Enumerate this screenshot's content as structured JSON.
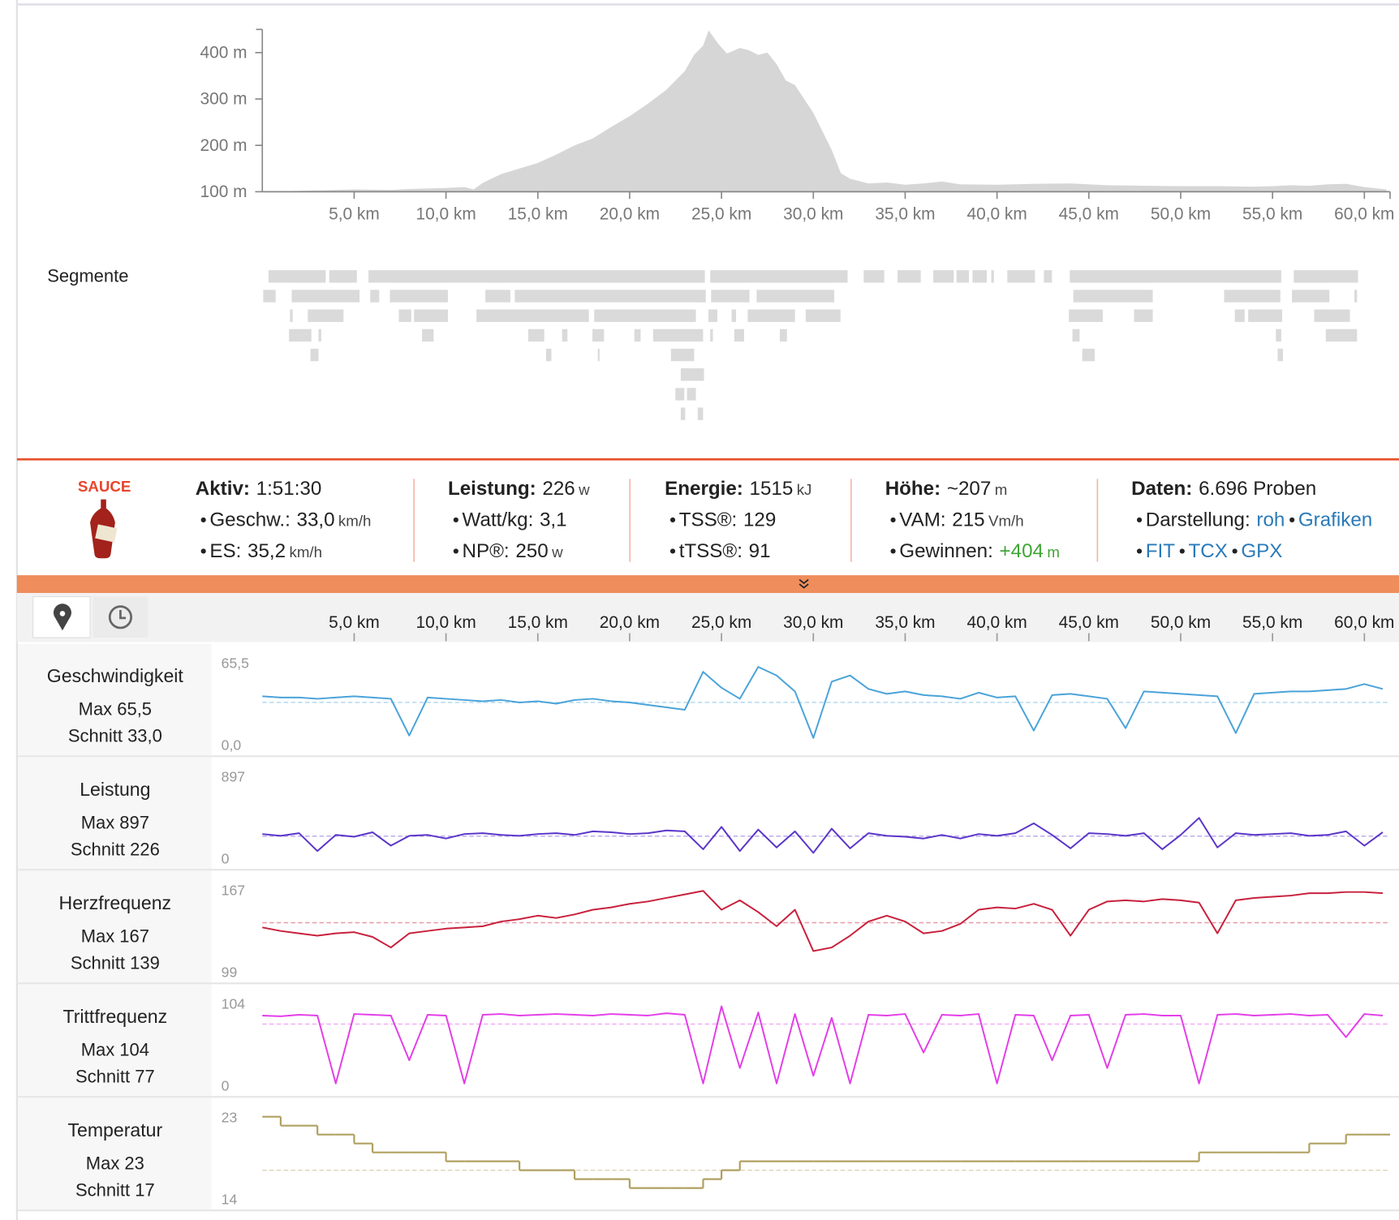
{
  "elevation": {
    "type": "area",
    "color": "#d6d6d6",
    "xlim": [
      0,
      61.4
    ],
    "ylim": [
      100,
      450
    ],
    "xticks": [
      {
        "value": 5,
        "label": "5,0 km"
      },
      {
        "value": 10,
        "label": "10,0 km"
      },
      {
        "value": 15,
        "label": "15,0 km"
      },
      {
        "value": 20,
        "label": "20,0 km"
      },
      {
        "value": 25,
        "label": "25,0 km"
      },
      {
        "value": 30,
        "label": "30,0 km"
      },
      {
        "value": 35,
        "label": "35,0 km"
      },
      {
        "value": 40,
        "label": "40,0 km"
      },
      {
        "value": 45,
        "label": "45,0 km"
      },
      {
        "value": 50,
        "label": "50,0 km"
      },
      {
        "value": 55,
        "label": "55,0 km"
      },
      {
        "value": 60,
        "label": "60,0 km"
      }
    ],
    "yticks": [
      {
        "value": 100,
        "label": "100 m"
      },
      {
        "value": 200,
        "label": "200 m"
      },
      {
        "value": 300,
        "label": "300 m"
      },
      {
        "value": 400,
        "label": "400 m"
      }
    ],
    "x": [
      0,
      2,
      4,
      5,
      7,
      8,
      10,
      11,
      11.5,
      12,
      13,
      14,
      15,
      16,
      17,
      18,
      19,
      20,
      21,
      22,
      23,
      23.5,
      24,
      24.3,
      24.8,
      25.3,
      26,
      26.5,
      27,
      27.5,
      28,
      28.5,
      29,
      30,
      31,
      31.5,
      32,
      33,
      34,
      35,
      36,
      37,
      38,
      40,
      42,
      44,
      46,
      48,
      50,
      52,
      54,
      55,
      56,
      57,
      58,
      59,
      60,
      61.2
    ],
    "values": [
      100,
      102,
      104,
      105,
      104,
      106,
      108,
      110,
      105,
      119,
      138,
      150,
      162,
      180,
      200,
      215,
      240,
      263,
      290,
      320,
      360,
      395,
      415,
      448,
      420,
      398,
      410,
      405,
      395,
      400,
      375,
      340,
      330,
      270,
      190,
      140,
      128,
      118,
      120,
      115,
      118,
      122,
      116,
      115,
      117,
      118,
      114,
      113,
      112,
      112,
      111,
      112,
      114,
      113,
      116,
      117,
      110,
      105
    ]
  },
  "segments_label": "Segmente",
  "logo": "SAUCE",
  "stats": [
    {
      "label": "Aktiv:",
      "value": "1:51:30",
      "items": [
        {
          "label": "Geschw.:",
          "value": "33,0",
          "unit": "km/h"
        },
        {
          "label": "ES:",
          "value": "35,2",
          "unit": "km/h"
        }
      ]
    },
    {
      "label": "Leistung:",
      "value": "226",
      "unit": "w",
      "items": [
        {
          "label": "Watt/kg:",
          "value": "3,1"
        },
        {
          "label": "NP®:",
          "value": "250",
          "unit": "w"
        }
      ]
    },
    {
      "label": "Energie:",
      "value": "1515",
      "unit": "kJ",
      "items": [
        {
          "label": "TSS®:",
          "value": "129"
        },
        {
          "label": "tTSS®:",
          "value": "91"
        }
      ]
    },
    {
      "label": "Höhe:",
      "value": "~207",
      "unit": "m",
      "items": [
        {
          "label": "VAM:",
          "value": "215",
          "unit": "Vm/h"
        },
        {
          "label": "Gewinnen:",
          "value": "+404",
          "unit": "m",
          "color": "#3fa535"
        }
      ]
    },
    {
      "label": "Daten:",
      "value": "6.696 Proben",
      "items": [
        {
          "label": "Darstellung:",
          "links": [
            "roh",
            "Grafiken"
          ]
        },
        {
          "links": [
            "FIT",
            "TCX",
            "GPX"
          ]
        }
      ]
    }
  ],
  "streams": {
    "type": "line",
    "xlim": [
      0,
      61.4
    ],
    "xticks": [
      {
        "value": 5,
        "label": "5,0 km"
      },
      {
        "value": 10,
        "label": "10,0 km"
      },
      {
        "value": 15,
        "label": "15,0 km"
      },
      {
        "value": 20,
        "label": "20,0 km"
      },
      {
        "value": 25,
        "label": "25,0 km"
      },
      {
        "value": 30,
        "label": "30,0 km"
      },
      {
        "value": 35,
        "label": "35,0 km"
      },
      {
        "value": 40,
        "label": "40,0 km"
      },
      {
        "value": 45,
        "label": "45,0 km"
      },
      {
        "value": 50,
        "label": "50,0 km"
      },
      {
        "value": 55,
        "label": "55,0 km"
      },
      {
        "value": 60,
        "label": "60,0 km"
      }
    ],
    "x": [
      0,
      1,
      2,
      3,
      4,
      5,
      6,
      7,
      8,
      9,
      10,
      11,
      12,
      13,
      14,
      15,
      16,
      17,
      18,
      19,
      20,
      21,
      22,
      23,
      24,
      25,
      26,
      27,
      28,
      29,
      30,
      31,
      32,
      33,
      34,
      35,
      36,
      37,
      38,
      39,
      40,
      41,
      42,
      43,
      44,
      45,
      46,
      47,
      48,
      49,
      50,
      51,
      52,
      53,
      54,
      55,
      56,
      57,
      58,
      59,
      60,
      61
    ],
    "series": [
      {
        "name": "Geschwindigkeit",
        "color": "#4aa3d9",
        "max": "Max 65,5",
        "mean": {
          "value": 33.0,
          "label": "Schnitt 33,0"
        },
        "ylim": [
          0,
          65.5
        ],
        "yticks": [
          {
            "value": 0,
            "label": "0,0"
          },
          {
            "value": 65.5,
            "label": "65,5"
          }
        ],
        "values": [
          38,
          37,
          37,
          36,
          37,
          38,
          37,
          36,
          6,
          37,
          36,
          35,
          34,
          35,
          33,
          34,
          32,
          35,
          36,
          34,
          33,
          31,
          29,
          27,
          58,
          45,
          36,
          62,
          55,
          42,
          4,
          50,
          55,
          44,
          40,
          42,
          39,
          38,
          36,
          41,
          37,
          38,
          10,
          39,
          40,
          38,
          36,
          12,
          42,
          41,
          40,
          39,
          38,
          8,
          40,
          41,
          42,
          42,
          43,
          44,
          48,
          44
        ]
      },
      {
        "name": "Leistung",
        "color": "#5b35c9",
        "max": "Max 897",
        "mean": {
          "value": 226,
          "label": "Schnitt 226"
        },
        "ylim": [
          0,
          897
        ],
        "yticks": [
          0,
          897
        ],
        "values": [
          250,
          230,
          260,
          60,
          240,
          220,
          270,
          120,
          230,
          240,
          200,
          250,
          260,
          240,
          230,
          250,
          260,
          240,
          280,
          270,
          250,
          260,
          290,
          280,
          80,
          330,
          60,
          300,
          100,
          280,
          40,
          310,
          90,
          260,
          230,
          220,
          200,
          240,
          200,
          250,
          230,
          260,
          370,
          240,
          90,
          260,
          250,
          230,
          260,
          80,
          240,
          430,
          100,
          260,
          240,
          250,
          260,
          230,
          240,
          280,
          120,
          270
        ]
      },
      {
        "name": "Herzfrequenz",
        "color": "#c8203c",
        "max": "Max 167",
        "mean": {
          "value": 139,
          "label": "Schnitt 139"
        },
        "ylim": [
          99,
          167
        ],
        "yticks": [
          99,
          167
        ],
        "values": [
          135,
          132,
          130,
          128,
          130,
          131,
          127,
          118,
          130,
          132,
          134,
          135,
          136,
          140,
          142,
          145,
          143,
          146,
          150,
          152,
          155,
          157,
          160,
          163,
          166,
          150,
          158,
          148,
          136,
          150,
          115,
          118,
          128,
          140,
          145,
          140,
          130,
          132,
          138,
          150,
          152,
          151,
          155,
          150,
          128,
          150,
          157,
          158,
          157,
          159,
          158,
          156,
          130,
          158,
          160,
          161,
          162,
          164,
          164,
          165,
          165,
          164
        ]
      },
      {
        "name": "Trittfrequenz",
        "color": "#e33ee8",
        "max": "Max 104",
        "mean": {
          "value": 77,
          "label": "Schnitt 77"
        },
        "ylim": [
          0,
          104
        ],
        "yticks": [
          0,
          104
        ],
        "values": [
          88,
          87,
          89,
          88,
          0,
          90,
          89,
          88,
          30,
          89,
          88,
          0,
          89,
          90,
          88,
          89,
          90,
          89,
          88,
          90,
          89,
          88,
          91,
          89,
          0,
          100,
          20,
          92,
          0,
          90,
          10,
          85,
          0,
          89,
          88,
          90,
          40,
          89,
          88,
          90,
          0,
          89,
          88,
          30,
          88,
          89,
          20,
          89,
          90,
          88,
          88,
          0,
          89,
          90,
          88,
          89,
          90,
          88,
          89,
          60,
          90,
          88
        ]
      },
      {
        "name": "Temperatur",
        "color": "#b0a060",
        "step": true,
        "max": "Max 23",
        "mean": {
          "value": 17,
          "label": "Schnitt 17"
        },
        "ylim": [
          14,
          23
        ],
        "yticks": [
          14,
          23
        ],
        "values": [
          23,
          22,
          22,
          21,
          21,
          20,
          19,
          19,
          19,
          19,
          18,
          18,
          18,
          18,
          17,
          17,
          17,
          16,
          16,
          16,
          15,
          15,
          15,
          15,
          16,
          17,
          18,
          18,
          18,
          18,
          18,
          18,
          18,
          18,
          18,
          18,
          18,
          18,
          18,
          18,
          18,
          18,
          18,
          18,
          18,
          18,
          18,
          18,
          18,
          18,
          18,
          19,
          19,
          19,
          19,
          19,
          19,
          20,
          20,
          21,
          21,
          21
        ]
      }
    ]
  }
}
